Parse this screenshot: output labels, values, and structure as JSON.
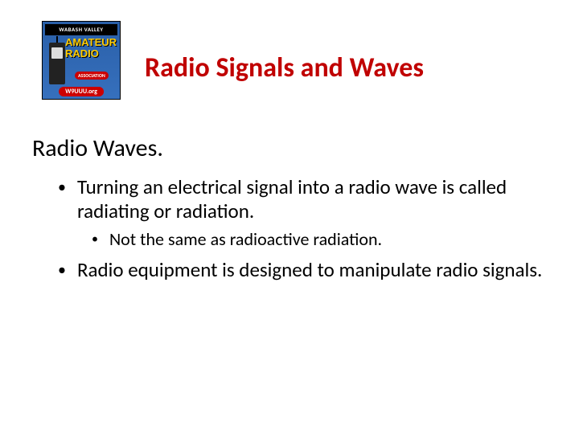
{
  "logo": {
    "banner": "WABASH VALLEY",
    "line1": "AMATEUR",
    "line2": "RADIO",
    "assoc": "ASSOCIATION",
    "site": "W9UUU.org"
  },
  "title": "Radio Signals and Waves",
  "section": "Radio Waves.",
  "bullets": [
    {
      "level": 1,
      "text": "Turning an electrical signal into a radio wave is called radiating or radiation."
    },
    {
      "level": 2,
      "text": "Not the same as radioactive radiation."
    },
    {
      "level": 1,
      "text": "Radio equipment is designed to manipulate radio signals."
    }
  ],
  "colors": {
    "title": "#c00000",
    "text": "#000000",
    "background": "#ffffff",
    "logo_bg": "#3670bd",
    "logo_text": "#ffcc00",
    "logo_red": "#cc0000"
  },
  "fonts": {
    "title_size": 34,
    "section_size": 30,
    "bullet1_size": 25,
    "bullet2_size": 22
  }
}
